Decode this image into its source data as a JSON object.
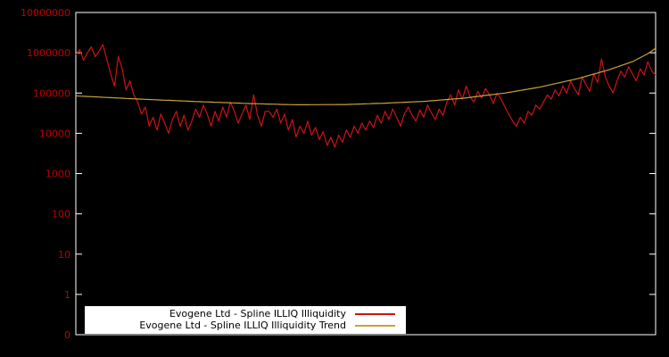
{
  "chart_data": {
    "type": "line",
    "title": "",
    "xlabel": "",
    "ylabel": "",
    "background_color": "#000000",
    "axis_color": "#ffffff",
    "tick_label_color": "#c00000",
    "y_scale": "log",
    "ylim": [
      0,
      10000000
    ],
    "yticks": [
      "0",
      "1",
      "10",
      "100",
      "1000",
      "10000",
      "100000",
      "1000000",
      "10000000"
    ],
    "xticks": [],
    "grid": false,
    "legend_position": "bottom-center",
    "series": [
      {
        "name": "Evogene Ltd - Spline ILLIQ Illiquidity",
        "color": "#cc1414",
        "values": [
          900000,
          1200000,
          650000,
          1000000,
          1400000,
          800000,
          1100000,
          1600000,
          700000,
          300000,
          150000,
          800000,
          400000,
          120000,
          200000,
          90000,
          60000,
          30000,
          45000,
          15000,
          25000,
          12000,
          30000,
          18000,
          10000,
          22000,
          35000,
          15000,
          28000,
          12000,
          20000,
          40000,
          25000,
          50000,
          30000,
          15000,
          35000,
          20000,
          45000,
          25000,
          60000,
          35000,
          18000,
          30000,
          50000,
          22000,
          90000,
          28000,
          15000,
          35000,
          35000,
          25000,
          40000,
          18000,
          30000,
          12000,
          22000,
          8000,
          15000,
          10000,
          20000,
          9000,
          14000,
          7000,
          11000,
          5000,
          8000,
          4500,
          9000,
          6000,
          12000,
          8000,
          15000,
          10000,
          18000,
          12000,
          20000,
          14000,
          28000,
          18000,
          35000,
          22000,
          40000,
          25000,
          15000,
          30000,
          45000,
          28000,
          20000,
          38000,
          25000,
          50000,
          32000,
          22000,
          40000,
          28000,
          60000,
          90000,
          50000,
          120000,
          70000,
          150000,
          80000,
          60000,
          110000,
          75000,
          130000,
          90000,
          55000,
          100000,
          70000,
          45000,
          30000,
          20000,
          15000,
          25000,
          18000,
          35000,
          28000,
          50000,
          40000,
          60000,
          90000,
          70000,
          120000,
          85000,
          150000,
          100000,
          200000,
          130000,
          90000,
          250000,
          160000,
          110000,
          300000,
          180000,
          700000,
          250000,
          150000,
          100000,
          200000,
          350000,
          250000,
          450000,
          300000,
          200000,
          400000,
          280000,
          600000,
          350000,
          280000
        ]
      },
      {
        "name": "Evogene Ltd - Spline ILLIQ Illiquidity Trend",
        "color": "#c9a23b",
        "anchors": [
          [
            0,
            85000
          ],
          [
            15,
            72000
          ],
          [
            30,
            62000
          ],
          [
            45,
            55000
          ],
          [
            57,
            51000
          ],
          [
            70,
            52000
          ],
          [
            80,
            56000
          ],
          [
            90,
            62000
          ],
          [
            100,
            74000
          ],
          [
            111,
            100000
          ],
          [
            120,
            140000
          ],
          [
            130,
            230000
          ],
          [
            138,
            380000
          ],
          [
            144,
            600000
          ],
          [
            148,
            950000
          ],
          [
            150,
            1300000
          ]
        ]
      }
    ]
  }
}
